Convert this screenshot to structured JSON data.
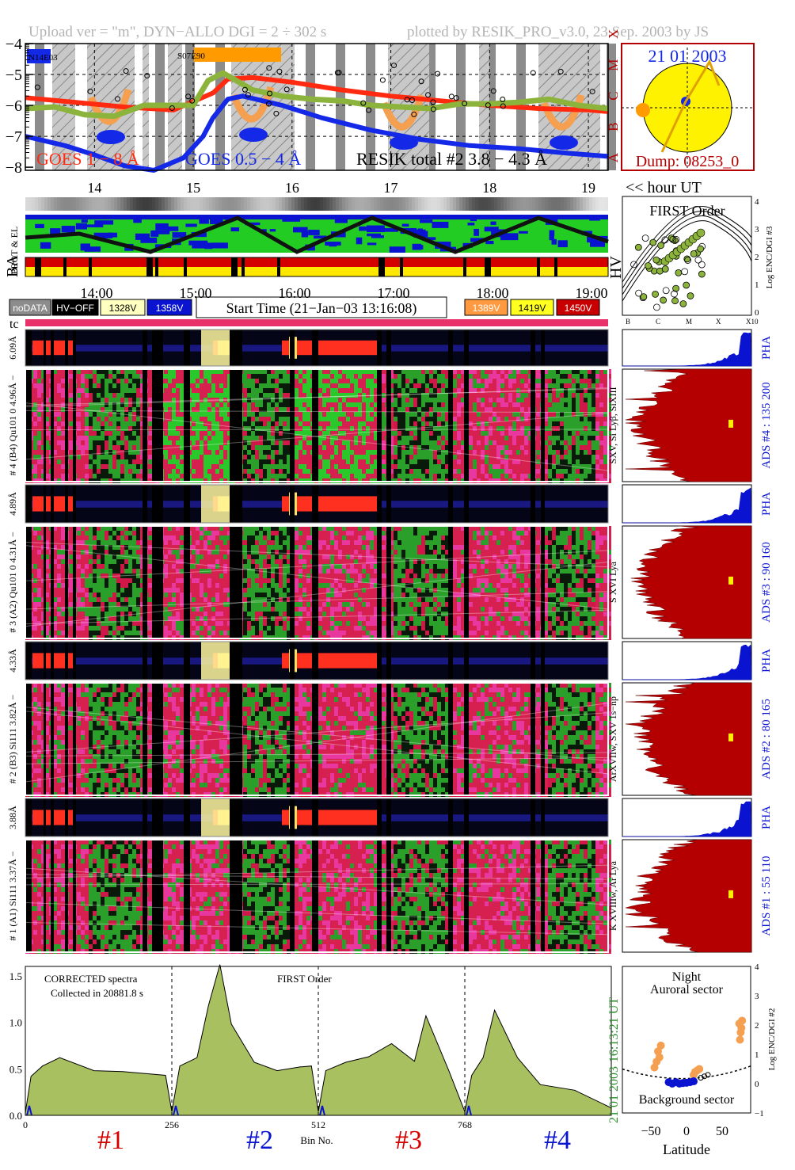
{
  "header": {
    "left": "Upload ver = \"m\", DYN−ALLO DGI =   2 ÷ 302 s",
    "right": "plotted by RESIK_PRO_v3.0, 23 Sep. 2003 by JS"
  },
  "colors": {
    "goes18": "#ff2a10",
    "goes054": "#1428e8",
    "resik": "#8cb43c",
    "orange": "#f5a050",
    "maroon": "#b40000",
    "green": "#22cc22",
    "magenta": "#e0207a",
    "blue": "#0a14d0",
    "spectrum_fill": "#a8c060"
  },
  "goes_panel": {
    "flare_labels": [
      "N14E03",
      "S07E90"
    ],
    "y_ticks": [
      "−4",
      "−5",
      "−6",
      "−7",
      "−8"
    ],
    "class_labels": [
      "X",
      "M",
      "C",
      "B",
      "A"
    ],
    "legend": [
      "GOES 1 − 8 Å",
      "GOES 0.5 − 4 Å",
      "RESIK total #2  3.8 − 4.3 Å"
    ],
    "hour_ticks": [
      "14",
      "15",
      "16",
      "17",
      "18",
      "19"
    ],
    "hour_label": "<< hour UT"
  },
  "sun_panel": {
    "date": "21 01 2003",
    "dump": "Dump: 08253_0"
  },
  "status_panel": {
    "left_labels": [
      "PROT & EL",
      "BA"
    ],
    "right_label": "HV",
    "time_ticks": [
      "14:00",
      "15:00",
      "16:00",
      "17:00",
      "18:00",
      "19:00"
    ],
    "legend": [
      "noDATA",
      "HV−OFF",
      "1328V",
      "1358V",
      "1389V",
      "1419V",
      "1450V"
    ],
    "start_time": "Start Time (21−Jan−03 13:16:08)",
    "tc": "tc"
  },
  "first_order_panel": {
    "title": "FIRST Order",
    "ylabel": "Log ENC/DGI #3",
    "y_ticks": [
      "4",
      "3",
      "2",
      "1",
      "0"
    ],
    "x_ticks": [
      "B",
      "C",
      "M",
      "X",
      "X10"
    ]
  },
  "channels": [
    {
      "pha_label": "6.09Å",
      "main_label": "# 4 (B4) Qu101 0  4.96Å −",
      "line_label": "SXV, Si Lyβ, SiXIII",
      "ads_label": "ADS #4 :   135 200"
    },
    {
      "pha_label": "4.89Å",
      "main_label": "# 3 (A2) Qu101 0  4.31Å −",
      "line_label": "S XVI Lya",
      "ads_label": "ADS #3 :    90 160"
    },
    {
      "pha_label": "4.33Å",
      "main_label": "# 2 (B3) Si111  3.82Å −",
      "line_label": "ArXVIIw, SXV 1s−np",
      "ads_label": "ADS #2 :    80 165"
    },
    {
      "pha_label": "3.88Å",
      "main_label": "# 1 (A1) Si111  3.37Å −",
      "line_label": "K XVIIIw, Ar Lya",
      "ads_label": "ADS #1 :    55 110"
    }
  ],
  "pha_text": "PHA",
  "spectrum_panel": {
    "label1": "CORRECTED spectra",
    "label2": "Collected in 20881.8 s",
    "label3": "FIRST Order",
    "y_ticks": [
      "1.5",
      "1.0",
      "0.5",
      "0.0"
    ],
    "bin_ticks": [
      "0",
      "256",
      "512",
      "768"
    ],
    "bin_label": "Bin No.",
    "channel_labels": [
      "#1",
      "#2",
      "#3",
      "#4"
    ],
    "side_time": "16:13:21 UT",
    "side_date": "21 01 2003"
  },
  "latitude_panel": {
    "top1": "Night",
    "top2": "Auroral sector",
    "bottom": "Background sector",
    "xlabel": "Latitude",
    "x_ticks": [
      "−50",
      "0",
      "50"
    ],
    "ylabel": "Log ENC/DGI #2",
    "y_ticks": [
      "4",
      "3",
      "2",
      "1",
      "0",
      "−1"
    ]
  },
  "chart_data": [
    {
      "type": "line",
      "title": "",
      "xlabel": "hour UT",
      "ylabel": "log flux",
      "xlim": [
        13.3,
        19.2
      ],
      "ylim": [
        -8.1,
        -4
      ],
      "series": [
        {
          "name": "GOES 1 − 8 Å",
          "x": [
            13.3,
            13.8,
            14.3,
            14.8,
            15.2,
            15.35,
            15.6,
            16.0,
            16.5,
            17.0,
            17.5,
            18.0,
            18.5,
            19.0,
            19.2
          ],
          "values": [
            -5.75,
            -5.9,
            -6.05,
            -6.15,
            -5.6,
            -5.15,
            -5.1,
            -5.25,
            -5.5,
            -5.7,
            -5.85,
            -6.0,
            -6.1,
            -6.15,
            -6.2
          ]
        },
        {
          "name": "GOES 0.5 − 4 Å",
          "x": [
            13.3,
            13.7,
            14.0,
            14.3,
            14.6,
            14.9,
            15.1,
            15.2,
            15.35,
            15.5,
            15.9,
            16.3,
            16.8,
            17.3,
            17.8,
            18.3,
            18.8,
            19.2
          ],
          "values": [
            -7.0,
            -7.3,
            -7.6,
            -7.95,
            -8.1,
            -7.7,
            -7.0,
            -6.4,
            -5.8,
            -5.7,
            -6.0,
            -6.4,
            -6.8,
            -7.1,
            -7.3,
            -7.4,
            -7.55,
            -7.65
          ]
        },
        {
          "name": "RESIK total #2  3.8 − 4.3 Å",
          "x": [
            13.3,
            13.6,
            13.9,
            14.2,
            14.5,
            14.8,
            15.0,
            15.15,
            15.3,
            15.6,
            15.9,
            16.2,
            16.5,
            16.8,
            17.1,
            17.4,
            17.7,
            18.0,
            18.3,
            18.6,
            18.9,
            19.2
          ],
          "values": [
            -6.1,
            -6.05,
            -6.3,
            -6.35,
            -6.0,
            -6.0,
            -6.0,
            -5.2,
            -4.95,
            -5.5,
            -5.7,
            -5.8,
            -5.85,
            -6.0,
            -6.05,
            -6.1,
            -5.95,
            -5.95,
            -5.9,
            -5.8,
            -6.0,
            -6.1
          ]
        }
      ]
    },
    {
      "type": "area",
      "title": "",
      "xlabel": "Bin No.",
      "ylabel": "",
      "xlim": [
        0,
        1024
      ],
      "ylim": [
        0,
        1.6
      ],
      "x": [
        0,
        10,
        30,
        60,
        120,
        170,
        245,
        256,
        270,
        300,
        320,
        340,
        360,
        400,
        440,
        480,
        500,
        512,
        525,
        560,
        600,
        640,
        680,
        700,
        740,
        768,
        780,
        800,
        820,
        860,
        900,
        960,
        1024
      ],
      "values": [
        0.05,
        0.4,
        0.55,
        0.6,
        0.5,
        0.45,
        0.45,
        0.02,
        0.55,
        0.6,
        1.2,
        1.6,
        1.0,
        0.55,
        0.5,
        0.5,
        0.55,
        0.02,
        0.5,
        0.55,
        0.65,
        0.75,
        0.6,
        1.05,
        0.5,
        0.02,
        0.45,
        0.6,
        1.15,
        0.6,
        0.35,
        0.25,
        0.1
      ]
    },
    {
      "type": "scatter",
      "title": "",
      "xlabel": "Latitude",
      "ylabel": "Log ENC/DGI #2",
      "xlim": [
        -90,
        90
      ],
      "ylim": [
        -1,
        4
      ],
      "series": [
        {
          "name": "Auroral",
          "x": [
            -40,
            -38,
            -42,
            -45,
            -36,
            10,
            12,
            15,
            18,
            75,
            76,
            77,
            74,
            78
          ],
          "values": [
            1.1,
            0.9,
            0.75,
            0.55,
            1.3,
            0.3,
            0.4,
            0.45,
            0.5,
            1.5,
            1.75,
            1.9,
            2.05,
            2.15
          ]
        },
        {
          "name": "Background",
          "x": [
            -25,
            -20,
            -15,
            -10,
            -5,
            0,
            5,
            10
          ],
          "values": [
            0.05,
            0.0,
            0.05,
            0.0,
            0.02,
            0.03,
            0.05,
            0.08
          ]
        }
      ]
    }
  ]
}
